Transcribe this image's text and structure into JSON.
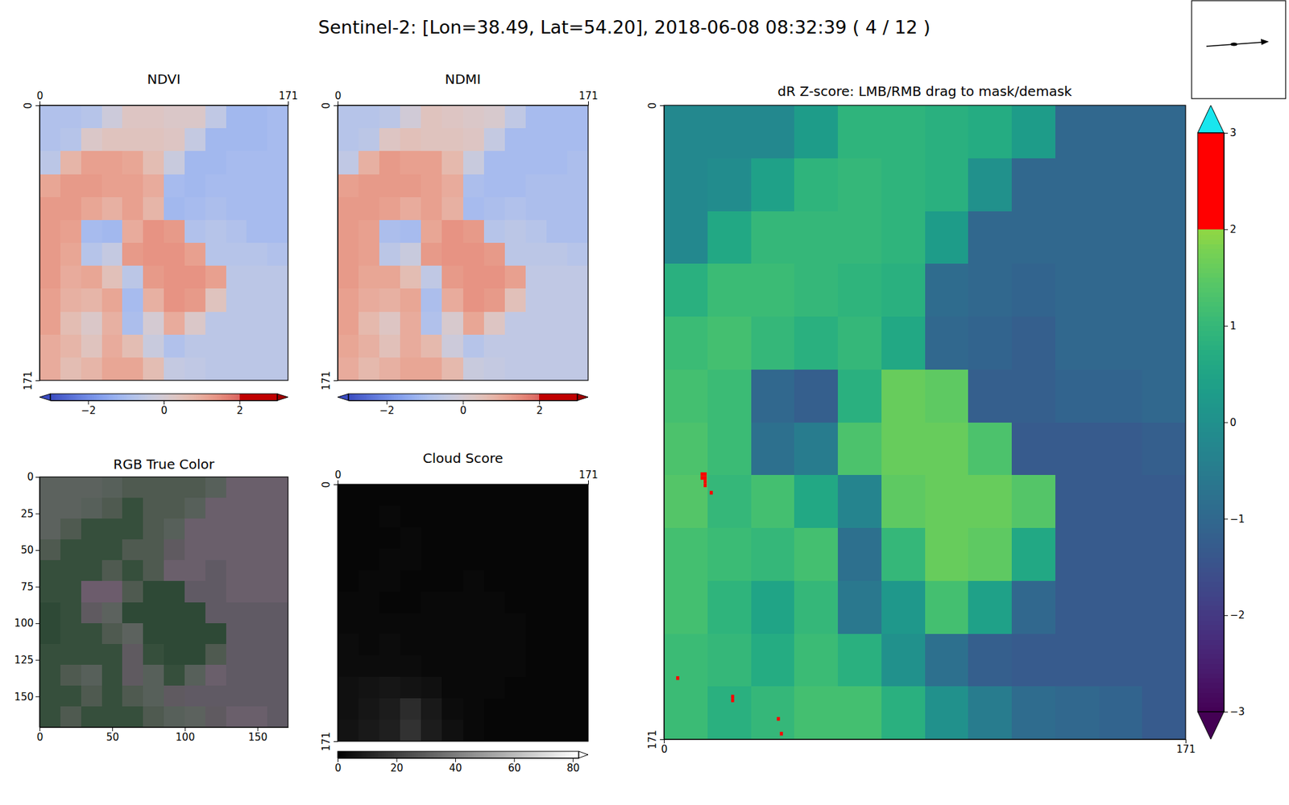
{
  "title": "Sentinel-2: [Lon=38.49, Lat=54.20], 2018-06-08 08:32:39 ( 4 / 12 )",
  "chart_data": [
    {
      "type": "heatmap",
      "title": "NDVI",
      "color": "coolwarm",
      "xlim": [
        0,
        171
      ],
      "ylim": [
        0,
        171
      ],
      "xticks": [
        0,
        171
      ],
      "yticks": [
        0,
        171
      ],
      "colorbar": {
        "range": [
          -3,
          3
        ],
        "threshold": 2,
        "ticks": [
          {
            "value": -2,
            "label": "−2"
          },
          0,
          2
        ]
      },
      "cells": [
        [
          -0.8,
          -0.8,
          -0.7,
          -0.2,
          0.3,
          0.3,
          0.2,
          0.2,
          -0.5,
          -1.1,
          -1.1,
          -1.0
        ],
        [
          -0.8,
          -0.7,
          0.2,
          0.4,
          0.4,
          0.4,
          0.3,
          -0.4,
          -1.1,
          -1.1,
          -1.1,
          -1.0
        ],
        [
          -0.6,
          0.8,
          1.2,
          1.2,
          1.1,
          0.6,
          -0.3,
          -1.1,
          -1.1,
          -1.0,
          -1.0,
          -1.0
        ],
        [
          1.1,
          1.3,
          1.3,
          1.2,
          1.2,
          1.0,
          -1.0,
          -1.1,
          -1.0,
          -1.0,
          -1.0,
          -1.0
        ],
        [
          1.3,
          1.3,
          1.1,
          0.9,
          1.2,
          0.8,
          -1.1,
          -1.0,
          -0.9,
          -1.0,
          -1.0,
          -1.0
        ],
        [
          1.3,
          1.2,
          -1.0,
          -1.1,
          1.0,
          1.4,
          1.3,
          -0.8,
          -0.7,
          -0.8,
          -1.0,
          -1.0
        ],
        [
          1.3,
          1.1,
          -0.7,
          -0.4,
          1.3,
          1.4,
          1.4,
          1.2,
          -0.7,
          -0.7,
          -0.7,
          -0.8
        ],
        [
          1.3,
          1.0,
          1.1,
          0.5,
          -0.6,
          1.3,
          1.4,
          1.4,
          1.2,
          -0.6,
          -0.6,
          -0.6
        ],
        [
          1.2,
          0.9,
          0.8,
          1.1,
          -1.0,
          0.9,
          1.4,
          1.3,
          0.4,
          -0.6,
          -0.6,
          -0.6
        ],
        [
          1.2,
          0.6,
          0.2,
          0.9,
          -0.9,
          0.0,
          1.0,
          0.2,
          -0.6,
          -0.6,
          -0.6,
          -0.6
        ],
        [
          1.0,
          0.8,
          0.4,
          1.0,
          0.6,
          -0.3,
          -0.8,
          -0.6,
          -0.6,
          -0.6,
          -0.6,
          -0.6
        ],
        [
          1.0,
          0.6,
          0.8,
          1.1,
          1.1,
          0.6,
          -0.4,
          -0.5,
          -0.6,
          -0.6,
          -0.6,
          -0.6
        ]
      ]
    },
    {
      "type": "heatmap",
      "title": "NDMI",
      "color": "coolwarm",
      "xlim": [
        0,
        171
      ],
      "ylim": [
        0,
        171
      ],
      "xticks": [
        0,
        171
      ],
      "yticks": [
        0,
        171
      ],
      "colorbar": {
        "range": [
          -3,
          3
        ],
        "threshold": 2,
        "ticks": [
          {
            "value": -2,
            "label": "−2"
          },
          0,
          2
        ]
      },
      "cells": [
        [
          -0.7,
          -0.7,
          -0.6,
          -0.1,
          0.4,
          0.3,
          0.2,
          0.1,
          -0.5,
          -1.0,
          -1.0,
          -1.0
        ],
        [
          -0.7,
          -0.6,
          0.3,
          0.5,
          0.4,
          0.4,
          0.3,
          -0.4,
          -1.0,
          -1.0,
          -1.0,
          -1.0
        ],
        [
          -0.5,
          0.9,
          1.3,
          1.2,
          1.2,
          0.7,
          -0.3,
          -1.0,
          -1.0,
          -1.0,
          -1.0,
          -0.9
        ],
        [
          1.2,
          1.3,
          1.3,
          1.3,
          1.2,
          1.0,
          -0.9,
          -1.0,
          -1.0,
          -0.9,
          -0.9,
          -0.9
        ],
        [
          1.3,
          1.3,
          1.2,
          1.0,
          1.2,
          0.9,
          -1.0,
          -0.9,
          -0.8,
          -0.9,
          -0.9,
          -0.9
        ],
        [
          1.3,
          1.2,
          -0.9,
          -1.0,
          1.1,
          1.4,
          1.3,
          -0.7,
          -0.6,
          -0.7,
          -0.9,
          -0.9
        ],
        [
          1.3,
          1.2,
          -0.6,
          -0.3,
          1.3,
          1.4,
          1.4,
          1.3,
          -0.6,
          -0.6,
          -0.6,
          -0.7
        ],
        [
          1.3,
          1.1,
          1.1,
          0.6,
          -0.5,
          1.3,
          1.4,
          1.4,
          1.2,
          -0.5,
          -0.5,
          -0.5
        ],
        [
          1.2,
          1.0,
          0.9,
          1.1,
          -0.9,
          1.0,
          1.4,
          1.3,
          0.5,
          -0.5,
          -0.5,
          -0.5
        ],
        [
          1.2,
          0.7,
          0.3,
          1.0,
          -0.8,
          0.1,
          1.1,
          0.3,
          -0.5,
          -0.5,
          -0.5,
          -0.5
        ],
        [
          1.1,
          0.9,
          0.5,
          1.0,
          0.7,
          -0.2,
          -0.7,
          -0.5,
          -0.5,
          -0.5,
          -0.5,
          -0.5
        ],
        [
          1.0,
          0.7,
          0.9,
          1.1,
          1.1,
          0.7,
          -0.3,
          -0.4,
          -0.5,
          -0.5,
          -0.5,
          -0.5
        ]
      ]
    },
    {
      "type": "image",
      "title": "RGB True Color",
      "xlim": [
        0,
        171
      ],
      "ylim": [
        0,
        171
      ],
      "xticks": [
        0,
        50,
        100,
        150
      ],
      "yticks": [
        0,
        25,
        50,
        75,
        100,
        125,
        150
      ],
      "colors": [
        [
          "#5c625e",
          "#5c625e",
          "#5c625e",
          "#57605a",
          "#4f5a50",
          "#4f5a50",
          "#4f5a50",
          "#4f5a50",
          "#57605a",
          "#6a5f6b",
          "#6a5f6b",
          "#6a5f6b"
        ],
        [
          "#5c625e",
          "#5c625e",
          "#57605a",
          "#4f5a50",
          "#364f3c",
          "#4f5a50",
          "#4f5a50",
          "#57605a",
          "#6a5f6b",
          "#6a5f6b",
          "#6a5f6b",
          "#6a5f6b"
        ],
        [
          "#5c625e",
          "#4f5a50",
          "#364f3c",
          "#364f3c",
          "#364f3c",
          "#4f5a50",
          "#57605a",
          "#6a5f6b",
          "#6a5f6b",
          "#6a5f6b",
          "#6a5f6b",
          "#6a5f6b"
        ],
        [
          "#4f5a50",
          "#364f3c",
          "#364f3c",
          "#364f3c",
          "#4f5a50",
          "#4f5a50",
          "#5f5a60",
          "#6a5f6b",
          "#6a5f6b",
          "#6a5f6b",
          "#6a5f6b",
          "#6a5f6b"
        ],
        [
          "#364f3c",
          "#364f3c",
          "#364f3c",
          "#4f5a50",
          "#364f3c",
          "#4f5a50",
          "#6a5f6b",
          "#6a5f6b",
          "#605a64",
          "#6a5f6b",
          "#6a5f6b",
          "#6a5f6b"
        ],
        [
          "#364f3c",
          "#364f3c",
          "#6c5c6c",
          "#6c5c6c",
          "#4f5a50",
          "#2e4936",
          "#2e4936",
          "#605a64",
          "#605a64",
          "#6a5f6b",
          "#6a5f6b",
          "#6a5f6b"
        ],
        [
          "#2e4936",
          "#364f3c",
          "#5f5a60",
          "#5c625e",
          "#2e4936",
          "#2e4936",
          "#2e4936",
          "#2e4936",
          "#605a64",
          "#605a64",
          "#605a64",
          "#605a64"
        ],
        [
          "#2e4936",
          "#364f3c",
          "#364f3c",
          "#4f5a50",
          "#5c625e",
          "#2e4936",
          "#2e4936",
          "#2e4936",
          "#2e4936",
          "#605a64",
          "#605a64",
          "#605a64"
        ],
        [
          "#364f3c",
          "#364f3c",
          "#364f3c",
          "#364f3c",
          "#5f5a60",
          "#364f3c",
          "#2e4936",
          "#2e4936",
          "#4f5a50",
          "#605a64",
          "#605a64",
          "#605a64"
        ],
        [
          "#364f3c",
          "#4f5a50",
          "#57605a",
          "#364f3c",
          "#5f5a60",
          "#57605a",
          "#364f3c",
          "#57605a",
          "#6a5f6b",
          "#605a64",
          "#605a64",
          "#605a64"
        ],
        [
          "#364f3c",
          "#364f3c",
          "#4f5a50",
          "#364f3c",
          "#4f5a50",
          "#57605a",
          "#5f5a60",
          "#605a64",
          "#605a64",
          "#605a64",
          "#605a64",
          "#605a64"
        ],
        [
          "#364f3c",
          "#4f5a50",
          "#364f3c",
          "#364f3c",
          "#364f3c",
          "#4f5a50",
          "#57605a",
          "#5c625e",
          "#5f5a60",
          "#6a5f6b",
          "#6a5f6b",
          "#605a64"
        ]
      ]
    },
    {
      "type": "heatmap",
      "title": "Cloud Score",
      "color": "gray",
      "xlim": [
        0,
        171
      ],
      "ylim": [
        0,
        171
      ],
      "xticks": [
        0,
        171
      ],
      "yticks": [
        0,
        171
      ],
      "colorbar": {
        "range": [
          0,
          82
        ],
        "ticks": [
          0,
          20,
          40,
          60,
          80
        ]
      },
      "cells": [
        [
          2,
          2,
          2,
          2,
          2,
          2,
          2,
          2,
          2,
          2,
          2,
          2
        ],
        [
          2,
          2,
          3,
          2,
          2,
          2,
          2,
          2,
          2,
          2,
          2,
          2
        ],
        [
          2,
          2,
          2,
          3,
          2,
          2,
          2,
          2,
          2,
          2,
          2,
          2
        ],
        [
          2,
          2,
          3,
          3,
          2,
          2,
          2,
          2,
          2,
          2,
          2,
          2
        ],
        [
          2,
          3,
          3,
          2,
          2,
          2,
          3,
          2,
          2,
          2,
          2,
          2
        ],
        [
          3,
          3,
          2,
          2,
          3,
          3,
          3,
          3,
          2,
          2,
          2,
          2
        ],
        [
          3,
          3,
          3,
          3,
          3,
          3,
          3,
          3,
          3,
          2,
          2,
          2
        ],
        [
          4,
          3,
          4,
          3,
          3,
          3,
          3,
          3,
          3,
          2,
          2,
          2
        ],
        [
          4,
          4,
          4,
          4,
          3,
          3,
          3,
          3,
          3,
          2,
          2,
          2
        ],
        [
          5,
          6,
          7,
          6,
          5,
          3,
          3,
          3,
          2,
          2,
          2,
          2
        ],
        [
          5,
          7,
          9,
          14,
          8,
          4,
          3,
          2,
          2,
          2,
          2,
          2
        ],
        [
          6,
          8,
          10,
          16,
          9,
          5,
          3,
          2,
          2,
          2,
          2,
          2
        ]
      ]
    },
    {
      "type": "heatmap",
      "title": "dR Z-score: LMB/RMB drag to mask/demask",
      "color": "viridis",
      "xlim": [
        0,
        171
      ],
      "ylim": [
        0,
        171
      ],
      "xticks": [
        0,
        171
      ],
      "yticks": [
        0,
        171
      ],
      "colorbar": {
        "range": [
          -3,
          3
        ],
        "threshold": 2,
        "ticks": [
          {
            "value": -3,
            "label": "−3"
          },
          {
            "value": -2,
            "label": "−2"
          },
          {
            "value": -1,
            "label": "−1"
          },
          0,
          1,
          2,
          3
        ]
      },
      "cells": [
        [
          -0.2,
          -0.2,
          -0.2,
          0.3,
          0.9,
          0.9,
          0.8,
          0.7,
          0.3,
          -1.0,
          -1.0,
          -1.0
        ],
        [
          -0.2,
          -0.1,
          0.4,
          0.9,
          1.0,
          0.9,
          0.8,
          0.0,
          -1.0,
          -1.0,
          -1.0,
          -1.0
        ],
        [
          -0.2,
          0.6,
          1.0,
          1.0,
          1.0,
          0.9,
          0.3,
          -1.0,
          -1.0,
          -1.0,
          -1.0,
          -1.0
        ],
        [
          0.8,
          1.1,
          1.1,
          1.0,
          0.9,
          0.8,
          -0.9,
          -1.0,
          -1.1,
          -1.0,
          -1.0,
          -1.0
        ],
        [
          1.1,
          1.2,
          1.0,
          0.8,
          1.0,
          0.6,
          -1.0,
          -1.1,
          -1.2,
          -1.0,
          -1.0,
          -1.0
        ],
        [
          1.2,
          1.1,
          -1.0,
          -1.2,
          0.8,
          1.6,
          1.5,
          -1.2,
          -1.2,
          -1.1,
          -1.1,
          -1.0
        ],
        [
          1.3,
          1.1,
          -0.8,
          -0.5,
          1.3,
          1.6,
          1.6,
          1.3,
          -1.3,
          -1.3,
          -1.3,
          -1.2
        ],
        [
          1.4,
          1.0,
          1.2,
          0.6,
          -0.3,
          1.5,
          1.6,
          1.6,
          1.4,
          -1.3,
          -1.3,
          -1.3
        ],
        [
          1.2,
          1.1,
          1.0,
          1.2,
          -0.8,
          1.0,
          1.6,
          1.5,
          0.6,
          -1.3,
          -1.3,
          -1.3
        ],
        [
          1.2,
          0.9,
          0.5,
          1.0,
          -0.6,
          0.2,
          1.2,
          0.4,
          -1.0,
          -1.3,
          -1.3,
          -1.3
        ],
        [
          1.1,
          1.0,
          0.7,
          1.1,
          0.8,
          0.0,
          -0.8,
          -1.2,
          -1.3,
          -1.3,
          -1.3,
          -1.3
        ],
        [
          1.1,
          0.8,
          1.0,
          1.2,
          1.2,
          0.8,
          0.0,
          -0.5,
          -0.9,
          -1.0,
          -1.1,
          -1.3
        ]
      ],
      "points": [
        {
          "x": 12,
          "y": 99,
          "value": 2.5
        },
        {
          "x": 13,
          "y": 99,
          "value": 2.5
        },
        {
          "x": 12,
          "y": 100,
          "value": 2.5
        },
        {
          "x": 13,
          "y": 100,
          "value": 2.5
        },
        {
          "x": 13,
          "y": 101,
          "value": 2.5
        },
        {
          "x": 13,
          "y": 102,
          "value": 2.4
        },
        {
          "x": 15,
          "y": 104,
          "value": 2.3
        },
        {
          "x": 4,
          "y": 154,
          "value": 2.2
        },
        {
          "x": 22,
          "y": 159,
          "value": 2.3
        },
        {
          "x": 22,
          "y": 160,
          "value": 2.3
        },
        {
          "x": 37,
          "y": 165,
          "value": 2.2
        },
        {
          "x": 38,
          "y": 169,
          "value": 2.2
        }
      ]
    }
  ]
}
